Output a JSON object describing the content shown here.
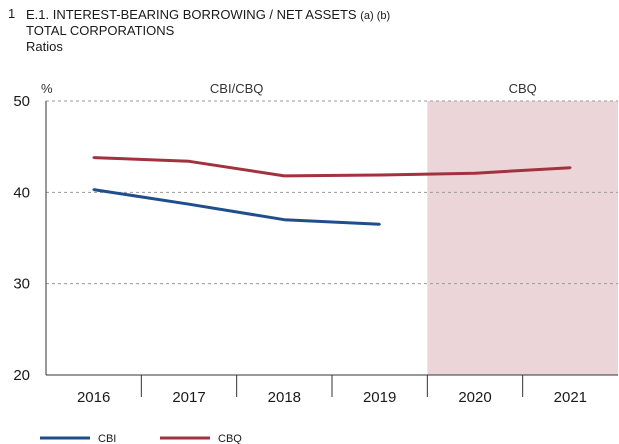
{
  "header": {
    "number": "1",
    "title": "E.1. INTEREST-BEARING BORROWING / NET ASSETS",
    "title_notes": "(a) (b)",
    "subtitle": "TOTAL CORPORATIONS",
    "unit_line": "Ratios"
  },
  "chart_data": {
    "type": "line",
    "title": "E.1. INTEREST-BEARING BORROWING / NET ASSETS (a) (b)",
    "subtitle": "TOTAL CORPORATIONS",
    "unit": "Ratios",
    "ylabel": "%",
    "xlabel": "",
    "categories": [
      "2016",
      "2017",
      "2018",
      "2019",
      "2020",
      "2021"
    ],
    "ylim": [
      20,
      50
    ],
    "yticks": [
      "20",
      "30",
      "40",
      "50"
    ],
    "grid": "horizontal dashed",
    "legend_position": "bottom-left",
    "regions": [
      {
        "label": "CBI/CBQ",
        "from": "2016",
        "to": "2019",
        "shaded": false
      },
      {
        "label": "CBQ",
        "from": "2020",
        "to": "2021",
        "shaded": true,
        "color": "#ecd5d9"
      }
    ],
    "series": [
      {
        "name": "CBI",
        "color": "#1f4e8c",
        "values": [
          40.3,
          38.7,
          37.0,
          36.5,
          null,
          null
        ]
      },
      {
        "name": "CBQ",
        "color": "#a3323f",
        "values": [
          43.8,
          43.4,
          41.8,
          41.9,
          42.1,
          42.7
        ]
      }
    ]
  }
}
